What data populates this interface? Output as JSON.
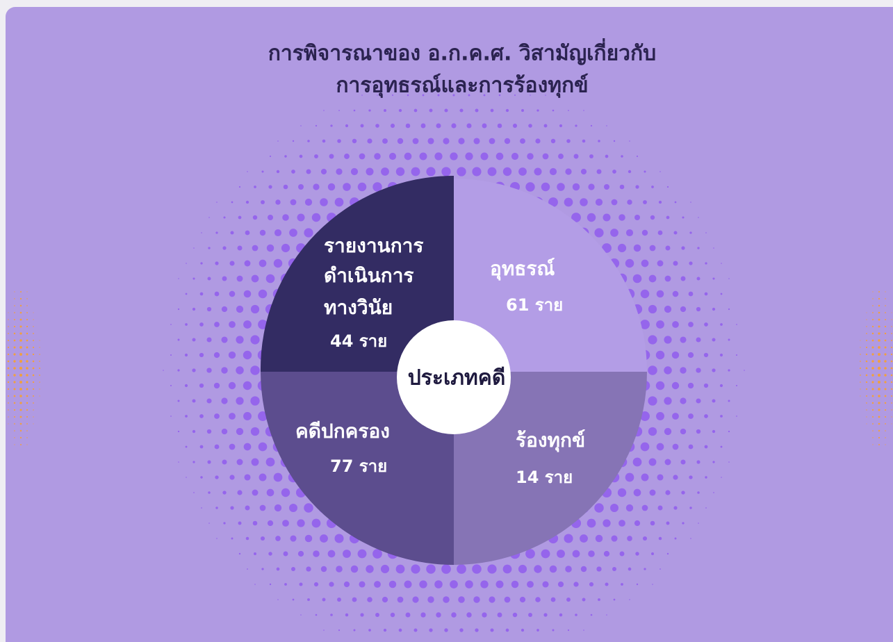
{
  "header": {
    "title": [
      "การพิจารณาของ อ.ก.ค.ศ. วิสามัญเกี่ยวกับ",
      "การอุทธรณ์และการร้องทุกข์"
    ]
  },
  "center": {
    "label": "ประเภทคดี"
  },
  "segments": [
    {
      "label": [
        "อุทธรณ์"
      ],
      "count": "61 ราย"
    },
    {
      "label": [
        "ร้องทุกข์"
      ],
      "count": "14 ราย"
    },
    {
      "label": [
        "คดีปกครอง"
      ],
      "count": "77 ราย"
    },
    {
      "label": [
        "รายงานการ",
        "ดำเนินการ",
        "ทางวินัย"
      ],
      "count": "44 ราย"
    }
  ]
}
